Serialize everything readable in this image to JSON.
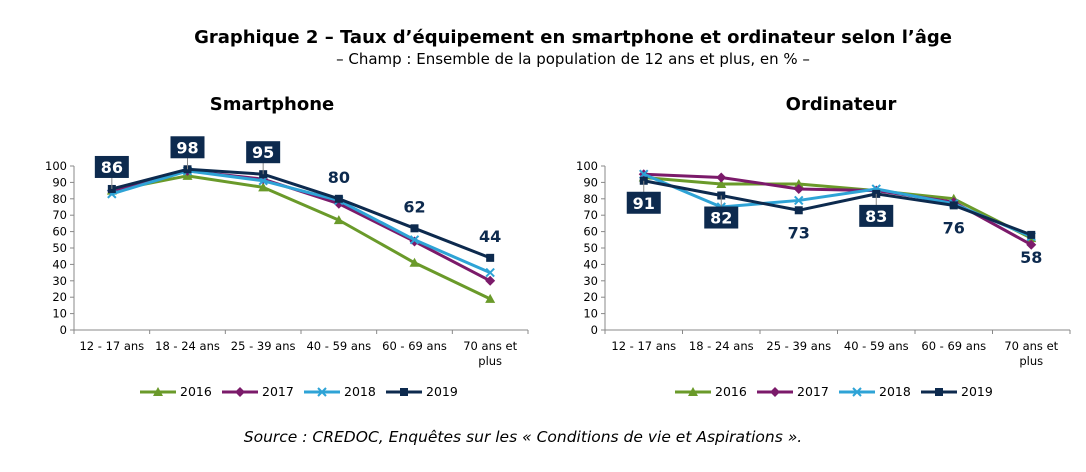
{
  "title": "Graphique 2 – Taux d’équipement en smartphone et ordinateur selon l’âge",
  "subtitle": "– Champ : Ensemble de la population de 12 ans et plus, en % –",
  "source": "Source : CREDOC, Enquêtes sur les « Conditions de vie et Aspirations ».",
  "colors": {
    "2016": "#6a9a2a",
    "2017": "#7b1a6a",
    "2018": "#2ea3d6",
    "2019": "#0d2a4e",
    "label_box": "#0d2a4e"
  },
  "chart_data": [
    {
      "type": "line",
      "title": "Smartphone",
      "categories": [
        "12 - 17 ans",
        "18 - 24 ans",
        "25 - 39 ans",
        "40 - 59 ans",
        "60 - 69 ans",
        "70 ans et plus"
      ],
      "ylim": [
        0,
        100
      ],
      "yticks": [
        0,
        10,
        20,
        30,
        40,
        50,
        60,
        70,
        80,
        90,
        100
      ],
      "legend_position": "bottom",
      "series": [
        {
          "name": "2016",
          "marker": "triangle",
          "values": [
            85,
            94,
            87,
            67,
            41,
            19
          ]
        },
        {
          "name": "2017",
          "marker": "diamond",
          "values": [
            85,
            97,
            92,
            77,
            54,
            30
          ]
        },
        {
          "name": "2018",
          "marker": "cross",
          "values": [
            83,
            97,
            91,
            79,
            55,
            35
          ]
        },
        {
          "name": "2019",
          "marker": "square",
          "values": [
            86,
            98,
            95,
            80,
            62,
            44
          ]
        }
      ],
      "data_labels": [
        {
          "series": "2019",
          "index": 0,
          "text": "86",
          "style": "box",
          "position": "above"
        },
        {
          "series": "2019",
          "index": 1,
          "text": "98",
          "style": "box",
          "position": "above"
        },
        {
          "series": "2019",
          "index": 2,
          "text": "95",
          "style": "box",
          "position": "above"
        },
        {
          "series": "2019",
          "index": 3,
          "text": "80",
          "style": "text",
          "position": "above"
        },
        {
          "series": "2019",
          "index": 4,
          "text": "62",
          "style": "text",
          "position": "above"
        },
        {
          "series": "2019",
          "index": 5,
          "text": "44",
          "style": "text",
          "position": "above"
        }
      ]
    },
    {
      "type": "line",
      "title": "Ordinateur",
      "categories": [
        "12 - 17 ans",
        "18 - 24 ans",
        "25 - 39 ans",
        "40 - 59 ans",
        "60 - 69 ans",
        "70 ans et plus"
      ],
      "ylim": [
        0,
        100
      ],
      "yticks": [
        0,
        10,
        20,
        30,
        40,
        50,
        60,
        70,
        80,
        90,
        100
      ],
      "legend_position": "bottom",
      "series": [
        {
          "name": "2016",
          "marker": "triangle",
          "values": [
            93,
            89,
            89,
            85,
            80,
            56
          ]
        },
        {
          "name": "2017",
          "marker": "diamond",
          "values": [
            95,
            93,
            86,
            85,
            78,
            52
          ]
        },
        {
          "name": "2018",
          "marker": "cross",
          "values": [
            95,
            75,
            79,
            86,
            77,
            57
          ]
        },
        {
          "name": "2019",
          "marker": "square",
          "values": [
            91,
            82,
            73,
            83,
            76,
            58
          ]
        }
      ],
      "data_labels": [
        {
          "series": "2019",
          "index": 0,
          "text": "91",
          "style": "box",
          "position": "below"
        },
        {
          "series": "2019",
          "index": 1,
          "text": "82",
          "style": "box",
          "position": "below"
        },
        {
          "series": "2019",
          "index": 2,
          "text": "73",
          "style": "text",
          "position": "below"
        },
        {
          "series": "2019",
          "index": 3,
          "text": "83",
          "style": "box",
          "position": "below"
        },
        {
          "series": "2019",
          "index": 4,
          "text": "76",
          "style": "text",
          "position": "below"
        },
        {
          "series": "2019",
          "index": 5,
          "text": "58",
          "style": "text",
          "position": "below"
        }
      ]
    }
  ]
}
